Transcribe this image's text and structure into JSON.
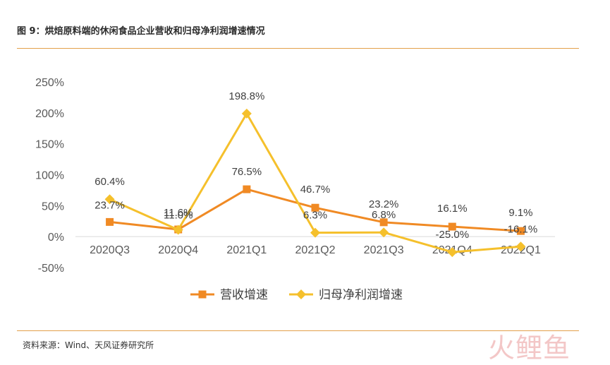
{
  "header": {
    "title": "图 9：烘焙原料端的休闲食品企业营收和归母净利润增速情况"
  },
  "footer": {
    "source": "资料来源：Wind、天风证券研究所",
    "watermark": "火鲤鱼"
  },
  "colors": {
    "revenue": "#f08a24",
    "profit": "#f5c02c",
    "accent_rule": "#e3a04a"
  },
  "chart_data": {
    "type": "line",
    "title": "",
    "xlabel": "",
    "ylabel": "",
    "categories": [
      "2020Q3",
      "2020Q4",
      "2021Q1",
      "2021Q2",
      "2021Q3",
      "2021Q4",
      "2022Q1"
    ],
    "ylim": [
      -50,
      250
    ],
    "yticks": [
      -50,
      0,
      50,
      100,
      150,
      200,
      250
    ],
    "ytick_labels": [
      "-50%",
      "0%",
      "50%",
      "100%",
      "150%",
      "200%",
      "250%"
    ],
    "legend_position": "bottom",
    "series": [
      {
        "name": "营收增速",
        "values": [
          23.7,
          11.6,
          76.5,
          46.7,
          23.2,
          16.1,
          9.1
        ],
        "labels": [
          "23.7%",
          "11.6%",
          "76.5%",
          "46.7%",
          "23.2%",
          "16.1%",
          "9.1%"
        ],
        "marker": "square"
      },
      {
        "name": "归母净利润增速",
        "values": [
          60.4,
          11.0,
          198.8,
          6.3,
          6.8,
          -25.0,
          -16.1
        ],
        "labels": [
          "60.4%",
          "11.0%",
          "198.8%",
          "6.3%",
          "6.8%",
          "-25.0%",
          "-16.1%"
        ],
        "marker": "diamond"
      }
    ]
  }
}
